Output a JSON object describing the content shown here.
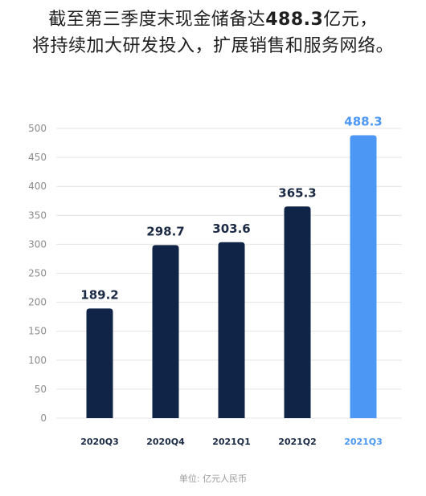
{
  "headline": {
    "line1_prefix": "截至第三季度末现金储备达",
    "line1_value": "488.3",
    "line1_suffix": "亿元，",
    "line2": "将持续加大研发投入，扩展销售和服务网络。"
  },
  "unit_note": "单位: 亿元人民币",
  "colors": {
    "bar_default": "#0f2447",
    "bar_highlight": "#4b97f3",
    "label_default": "#1b2a44",
    "label_highlight": "#4b97f3",
    "grid": "#e4e4e4",
    "tick": "#8c8c8c"
  },
  "chart_data": {
    "type": "bar",
    "categories": [
      "2020Q3",
      "2020Q4",
      "2021Q1",
      "2021Q2",
      "2021Q3"
    ],
    "values": [
      189.2,
      298.7,
      303.6,
      365.3,
      488.3
    ],
    "data_labels": [
      "189.2",
      "298.7",
      "303.6",
      "365.3",
      "488.3"
    ],
    "highlight_index": 4,
    "ylim": [
      0,
      500
    ],
    "yticks": [
      0,
      50,
      100,
      150,
      200,
      250,
      300,
      350,
      400,
      450,
      500
    ],
    "grid": true,
    "title": "",
    "xlabel": "",
    "ylabel": ""
  }
}
